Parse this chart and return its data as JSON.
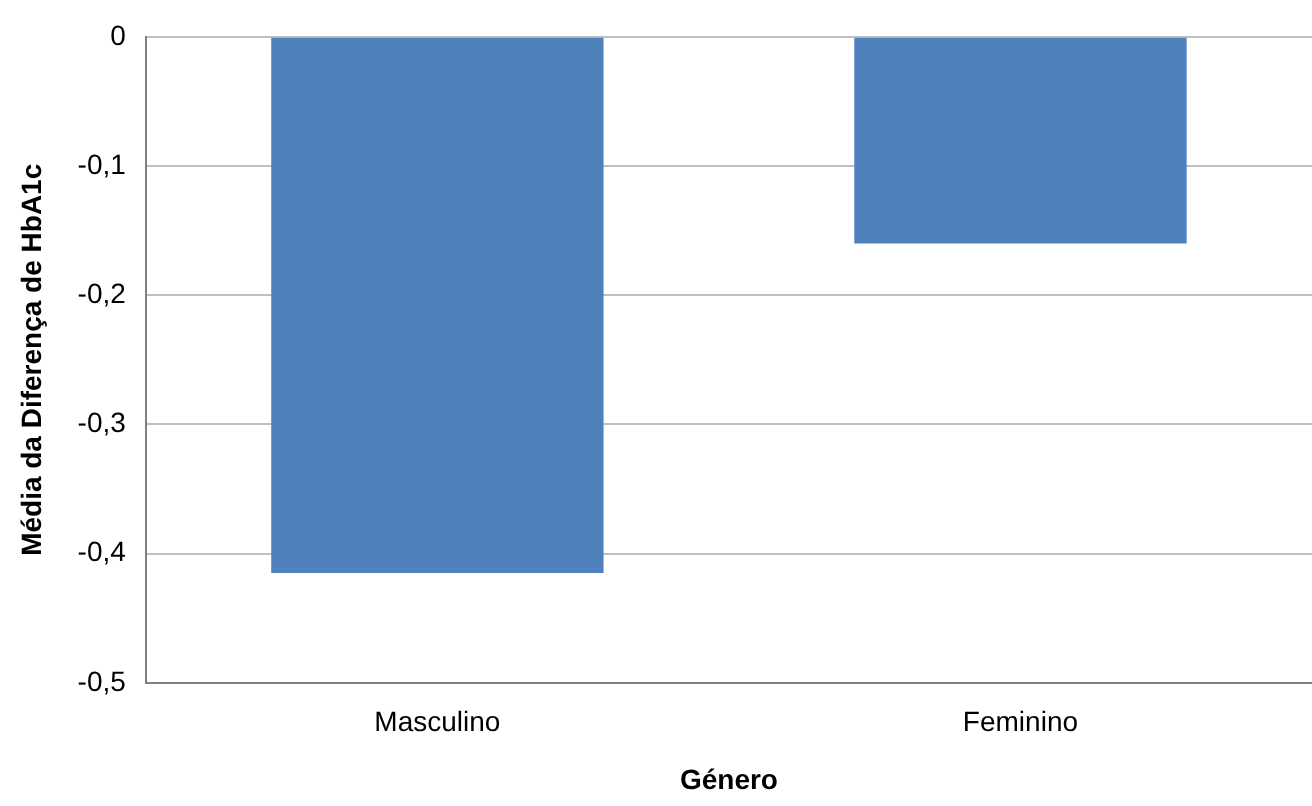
{
  "chart_data": {
    "type": "bar",
    "xlabel": "Género",
    "ylabel": "Média da Diferença de HbA1c",
    "categories": [
      "Masculino",
      "Feminino"
    ],
    "values": [
      -0.415,
      -0.16
    ],
    "color": "#4f81bd",
    "ylim": [
      -0.5,
      0
    ],
    "yticks": [
      {
        "value": -0.5,
        "label": "-0,5"
      },
      {
        "value": -0.4,
        "label": "-0,4"
      },
      {
        "value": -0.3,
        "label": "-0,3"
      },
      {
        "value": -0.2,
        "label": "-0,2"
      },
      {
        "value": -0.1,
        "label": "-0,1"
      },
      {
        "value": 0,
        "label": "0"
      }
    ],
    "grid": "y",
    "legend": false
  }
}
